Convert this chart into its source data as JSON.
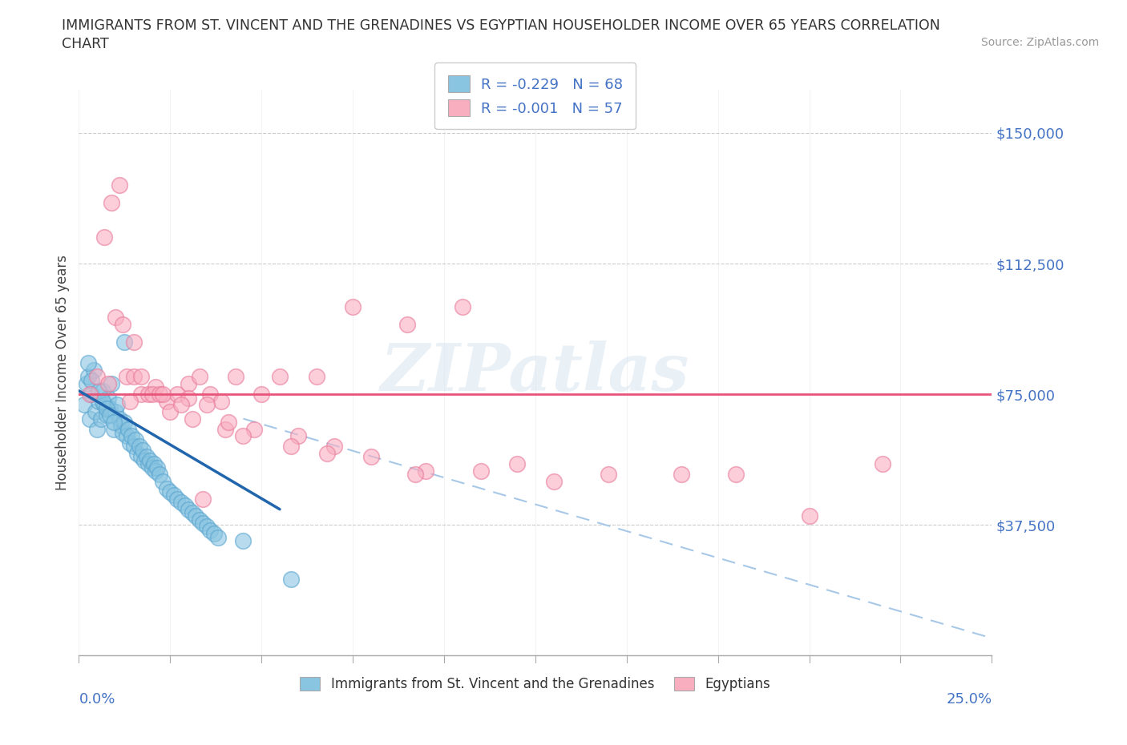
{
  "title_line1": "IMMIGRANTS FROM ST. VINCENT AND THE GRENADINES VS EGYPTIAN HOUSEHOLDER INCOME OVER 65 YEARS CORRELATION",
  "title_line2": "CHART",
  "source": "Source: ZipAtlas.com",
  "ylabel": "Householder Income Over 65 years",
  "xmin": 0.0,
  "xmax": 25.0,
  "ymin": 0,
  "ymax": 162500,
  "yticks": [
    0,
    37500,
    75000,
    112500,
    150000
  ],
  "ytick_labels": [
    "",
    "$37,500",
    "$75,000",
    "$112,500",
    "$150,000"
  ],
  "legend1_label": "R = -0.229   N = 68",
  "legend2_label": "R = -0.001   N = 57",
  "blue_color": "#89c4e1",
  "blue_edge": "#5aa5d0",
  "pink_color": "#f9aec0",
  "pink_edge": "#e87a9a",
  "trend_blue_color": "#2166ac",
  "trend_pink_color": "#e8547a",
  "trend_pink_dashed_color": "#a8c8e8",
  "watermark": "ZIPatlas",
  "blue_scatter_x": [
    0.15,
    0.2,
    0.25,
    0.3,
    0.35,
    0.4,
    0.45,
    0.5,
    0.55,
    0.6,
    0.65,
    0.7,
    0.75,
    0.8,
    0.85,
    0.9,
    0.95,
    1.0,
    1.05,
    1.1,
    1.15,
    1.2,
    1.25,
    1.3,
    1.35,
    1.4,
    1.45,
    1.5,
    1.55,
    1.6,
    1.65,
    1.7,
    1.75,
    1.8,
    1.85,
    1.9,
    1.95,
    2.0,
    2.05,
    2.1,
    2.15,
    2.2,
    2.3,
    2.4,
    2.5,
    2.6,
    2.7,
    2.8,
    2.9,
    3.0,
    3.1,
    3.2,
    3.3,
    3.4,
    3.5,
    3.6,
    3.7,
    3.8,
    0.25,
    0.35,
    0.55,
    0.65,
    0.75,
    0.85,
    0.95,
    4.5,
    5.8,
    1.25
  ],
  "blue_scatter_y": [
    72000,
    78000,
    80000,
    68000,
    75000,
    82000,
    70000,
    65000,
    73000,
    68000,
    76000,
    72000,
    69000,
    74000,
    71000,
    78000,
    65000,
    70000,
    72000,
    68000,
    66000,
    64000,
    67000,
    63000,
    65000,
    61000,
    63000,
    60000,
    62000,
    58000,
    60000,
    57000,
    59000,
    56000,
    57000,
    55000,
    56000,
    54000,
    55000,
    53000,
    54000,
    52000,
    50000,
    48000,
    47000,
    46000,
    45000,
    44000,
    43000,
    42000,
    41000,
    40000,
    39000,
    38000,
    37000,
    36000,
    35000,
    34000,
    84000,
    79000,
    76000,
    73000,
    71000,
    69000,
    67000,
    33000,
    22000,
    90000
  ],
  "pink_scatter_x": [
    0.3,
    0.5,
    0.7,
    0.9,
    1.1,
    1.3,
    1.5,
    1.7,
    1.9,
    2.1,
    2.4,
    2.7,
    3.0,
    3.3,
    3.6,
    3.9,
    4.3,
    4.8,
    5.5,
    6.5,
    7.5,
    9.0,
    10.5,
    12.0,
    14.5,
    18.0,
    22.0,
    1.0,
    1.5,
    2.0,
    2.5,
    3.0,
    3.5,
    4.0,
    5.0,
    6.0,
    8.0,
    11.0,
    1.2,
    1.7,
    2.2,
    2.8,
    3.4,
    4.5,
    5.8,
    7.0,
    9.5,
    13.0,
    16.5,
    20.0,
    0.8,
    1.4,
    2.3,
    3.1,
    4.1,
    6.8,
    9.2
  ],
  "pink_scatter_y": [
    75000,
    80000,
    120000,
    130000,
    135000,
    80000,
    80000,
    75000,
    75000,
    77000,
    73000,
    75000,
    78000,
    80000,
    75000,
    73000,
    80000,
    65000,
    80000,
    80000,
    100000,
    95000,
    100000,
    55000,
    52000,
    52000,
    55000,
    97000,
    90000,
    75000,
    70000,
    74000,
    72000,
    65000,
    75000,
    63000,
    57000,
    53000,
    95000,
    80000,
    75000,
    72000,
    45000,
    63000,
    60000,
    60000,
    53000,
    50000,
    52000,
    40000,
    78000,
    73000,
    75000,
    68000,
    67000,
    58000,
    52000
  ],
  "blue_trend_x0": 0.0,
  "blue_trend_y0": 76000,
  "blue_trend_x1": 5.5,
  "blue_trend_y1": 42000,
  "pink_trend_y": 75000,
  "pink_dashed_x0": 4.5,
  "pink_dashed_y0": 68000,
  "pink_dashed_x1": 25.0,
  "pink_dashed_y1": 5000
}
